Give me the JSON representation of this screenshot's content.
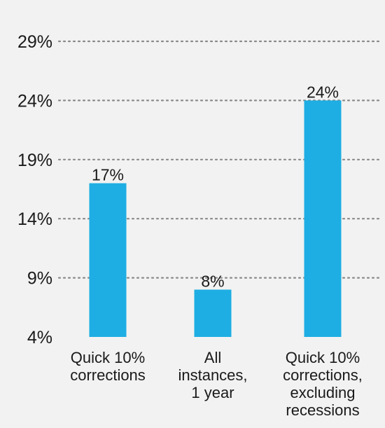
{
  "chart_data": {
    "type": "bar",
    "categories": [
      [
        "Quick 10%",
        "corrections"
      ],
      [
        "All",
        "instances,",
        "1 year"
      ],
      [
        "Quick 10%",
        "corrections,",
        "excluding",
        "recessions"
      ]
    ],
    "values": [
      17,
      8,
      24
    ],
    "data_labels": [
      "17%",
      "8%",
      "24%"
    ],
    "yticks": [
      4,
      9,
      14,
      19,
      24,
      29
    ],
    "ytick_labels": [
      "4%",
      "9%",
      "14%",
      "19%",
      "24%",
      "29%"
    ],
    "ylim": [
      4,
      29
    ],
    "grid": true,
    "bar_color": "#1eaee3",
    "grid_color": "#8a8a8a",
    "background": "#f2f2f2",
    "title": "",
    "xlabel": "",
    "ylabel": ""
  }
}
